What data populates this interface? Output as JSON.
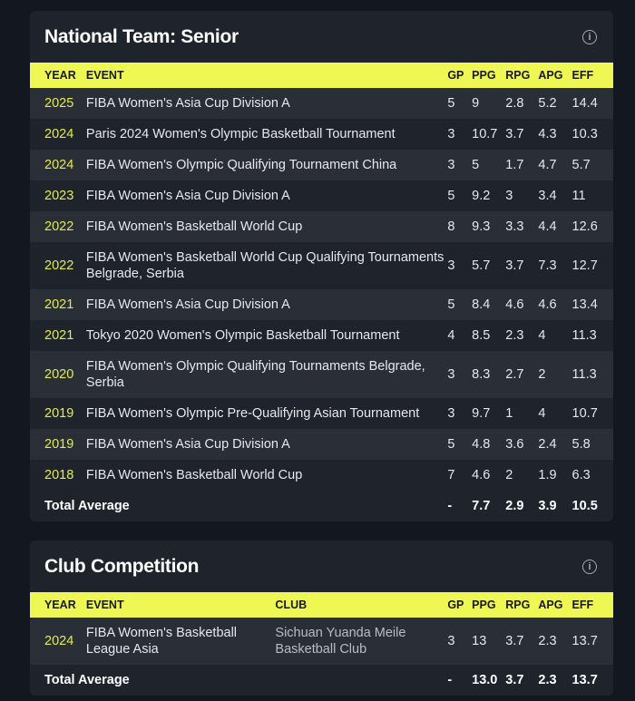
{
  "national": {
    "title": "National Team: Senior",
    "info_icon": "info-icon",
    "headers": [
      "YEAR",
      "EVENT",
      "GP",
      "PPG",
      "RPG",
      "APG",
      "EFF"
    ],
    "rows": [
      [
        "2025",
        "FIBA Women's Asia Cup Division A",
        "5",
        "9",
        "2.8",
        "5.2",
        "14.4"
      ],
      [
        "2024",
        "Paris 2024 Women's Olympic Basketball Tournament",
        "3",
        "10.7",
        "3.7",
        "4.3",
        "10.3"
      ],
      [
        "2024",
        "FIBA Women's Olympic Qualifying Tournament China",
        "3",
        "5",
        "1.7",
        "4.7",
        "5.7"
      ],
      [
        "2023",
        "FIBA Women's Asia Cup Division A",
        "5",
        "9.2",
        "3",
        "3.4",
        "11"
      ],
      [
        "2022",
        "FIBA Women's Basketball World Cup",
        "8",
        "9.3",
        "3.3",
        "4.4",
        "12.6"
      ],
      [
        "2022",
        "FIBA Women's Basketball World Cup Qualifying Tournaments Belgrade, Serbia",
        "3",
        "5.7",
        "3.7",
        "7.3",
        "12.7"
      ],
      [
        "2021",
        "FIBA Women's Asia Cup Division A",
        "5",
        "8.4",
        "4.6",
        "4.6",
        "13.4"
      ],
      [
        "2021",
        "Tokyo 2020 Women's Olympic Basketball Tournament",
        "4",
        "8.5",
        "2.3",
        "4",
        "11.3"
      ],
      [
        "2020",
        "FIBA Women's Olympic Qualifying Tournaments Belgrade, Serbia",
        "3",
        "8.3",
        "2.7",
        "2",
        "11.3"
      ],
      [
        "2019",
        "FIBA Women's Olympic Pre-Qualifying Asian Tournament",
        "3",
        "9.7",
        "1",
        "4",
        "10.7"
      ],
      [
        "2019",
        "FIBA Women's Asia Cup Division A",
        "5",
        "4.8",
        "3.6",
        "2.4",
        "5.8"
      ],
      [
        "2018",
        "FIBA Women's Basketball World Cup",
        "7",
        "4.6",
        "2",
        "1.9",
        "6.3"
      ]
    ],
    "total": [
      "Total Average",
      "-",
      "7.7",
      "2.9",
      "3.9",
      "10.5"
    ]
  },
  "club": {
    "title": "Club Competition",
    "info_icon": "info-icon",
    "headers": [
      "YEAR",
      "EVENT",
      "CLUB",
      "GP",
      "PPG",
      "RPG",
      "APG",
      "EFF"
    ],
    "rows": [
      [
        "2024",
        "FIBA Women's Basketball League Asia",
        "Sichuan Yuanda Meile Basketball Club",
        "3",
        "13",
        "3.7",
        "2.3",
        "13.7"
      ]
    ],
    "total": [
      "Total Average",
      "-",
      "13.0",
      "3.7",
      "2.3",
      "13.7"
    ]
  },
  "colors": {
    "accent": "#eef754",
    "year": "#e4ec4c",
    "card": "#1f232b",
    "row_alt": "#2a2e36",
    "page": "#121720"
  }
}
